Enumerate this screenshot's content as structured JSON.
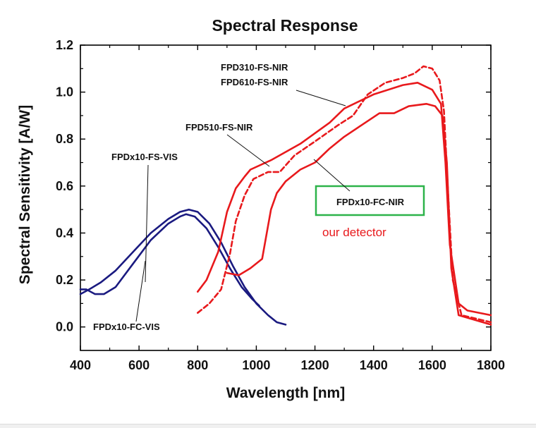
{
  "chart_data": {
    "type": "line",
    "title": "Spectral Response",
    "xlabel": "Wavelength [nm]",
    "ylabel": "Spectral Sensitivity [A/W]",
    "xlim": [
      400,
      1800
    ],
    "ylim": [
      -0.1,
      1.2
    ],
    "x_ticks": [
      400,
      600,
      800,
      1000,
      1200,
      1400,
      1600,
      1800
    ],
    "y_ticks": [
      0.0,
      0.2,
      0.4,
      0.6,
      0.8,
      1.0,
      1.2
    ],
    "x_tick_labels": [
      "400",
      "600",
      "800",
      "1000",
      "1200",
      "1400",
      "1600",
      "1800"
    ],
    "y_tick_labels": [
      "0.0",
      "0.2",
      "0.4",
      "0.6",
      "0.8",
      "1.0",
      "1.2"
    ],
    "grid": false,
    "series": [
      {
        "name": "FPDx10-FS-VIS",
        "color": "#1a1a80",
        "dash": "solid",
        "points": [
          [
            400,
            0.14
          ],
          [
            430,
            0.16
          ],
          [
            470,
            0.19
          ],
          [
            520,
            0.24
          ],
          [
            580,
            0.32
          ],
          [
            640,
            0.4
          ],
          [
            700,
            0.46
          ],
          [
            740,
            0.49
          ],
          [
            770,
            0.5
          ],
          [
            800,
            0.49
          ],
          [
            840,
            0.44
          ],
          [
            880,
            0.36
          ],
          [
            920,
            0.26
          ],
          [
            960,
            0.17
          ],
          [
            1000,
            0.1
          ],
          [
            1040,
            0.05
          ],
          [
            1070,
            0.02
          ],
          [
            1100,
            0.01
          ]
        ]
      },
      {
        "name": "FPDx10-FC-VIS",
        "color": "#1a1a80",
        "dash": "solid",
        "points": [
          [
            400,
            0.16
          ],
          [
            420,
            0.16
          ],
          [
            450,
            0.14
          ],
          [
            480,
            0.14
          ],
          [
            520,
            0.17
          ],
          [
            580,
            0.27
          ],
          [
            640,
            0.37
          ],
          [
            700,
            0.44
          ],
          [
            740,
            0.47
          ],
          [
            760,
            0.48
          ],
          [
            790,
            0.47
          ],
          [
            830,
            0.42
          ],
          [
            870,
            0.34
          ],
          [
            910,
            0.25
          ],
          [
            950,
            0.17
          ],
          [
            985,
            0.12
          ],
          [
            1010,
            0.09
          ]
        ]
      },
      {
        "name": "FPD310-FS-NIR / FPD610-FS-NIR",
        "color": "#e8191c",
        "dash": "solid",
        "points": [
          [
            800,
            0.15
          ],
          [
            830,
            0.2
          ],
          [
            870,
            0.32
          ],
          [
            900,
            0.49
          ],
          [
            930,
            0.59
          ],
          [
            960,
            0.64
          ],
          [
            980,
            0.67
          ],
          [
            1050,
            0.71
          ],
          [
            1150,
            0.78
          ],
          [
            1250,
            0.87
          ],
          [
            1300,
            0.93
          ],
          [
            1400,
            0.99
          ],
          [
            1500,
            1.03
          ],
          [
            1550,
            1.04
          ],
          [
            1600,
            1.01
          ],
          [
            1630,
            0.95
          ],
          [
            1645,
            0.7
          ],
          [
            1660,
            0.35
          ],
          [
            1690,
            0.1
          ],
          [
            1720,
            0.07
          ],
          [
            1800,
            0.05
          ]
        ]
      },
      {
        "name": "FPD510-FS-NIR",
        "color": "#e8191c",
        "dash": "dashed",
        "points": [
          [
            800,
            0.06
          ],
          [
            840,
            0.1
          ],
          [
            880,
            0.16
          ],
          [
            910,
            0.31
          ],
          [
            930,
            0.45
          ],
          [
            960,
            0.56
          ],
          [
            990,
            0.63
          ],
          [
            1040,
            0.66
          ],
          [
            1080,
            0.66
          ],
          [
            1130,
            0.73
          ],
          [
            1200,
            0.79
          ],
          [
            1280,
            0.86
          ],
          [
            1330,
            0.9
          ],
          [
            1380,
            0.99
          ],
          [
            1440,
            1.04
          ],
          [
            1500,
            1.06
          ],
          [
            1540,
            1.08
          ],
          [
            1570,
            1.11
          ],
          [
            1600,
            1.1
          ],
          [
            1625,
            1.05
          ],
          [
            1640,
            0.92
          ],
          [
            1655,
            0.55
          ],
          [
            1670,
            0.2
          ],
          [
            1700,
            0.05
          ],
          [
            1800,
            0.02
          ]
        ]
      },
      {
        "name": "FPDx10-FC-NIR",
        "color": "#e8191c",
        "dash": "solid",
        "points": [
          [
            900,
            0.23
          ],
          [
            940,
            0.22
          ],
          [
            980,
            0.25
          ],
          [
            1020,
            0.29
          ],
          [
            1050,
            0.5
          ],
          [
            1070,
            0.57
          ],
          [
            1100,
            0.62
          ],
          [
            1150,
            0.67
          ],
          [
            1200,
            0.7
          ],
          [
            1250,
            0.76
          ],
          [
            1300,
            0.81
          ],
          [
            1360,
            0.86
          ],
          [
            1420,
            0.91
          ],
          [
            1470,
            0.91
          ],
          [
            1520,
            0.94
          ],
          [
            1580,
            0.95
          ],
          [
            1610,
            0.94
          ],
          [
            1635,
            0.9
          ],
          [
            1650,
            0.7
          ],
          [
            1665,
            0.25
          ],
          [
            1690,
            0.05
          ],
          [
            1800,
            0.01
          ]
        ]
      }
    ],
    "annotations": [
      {
        "id": "fpd310",
        "text": "FPD310-FS-NIR"
      },
      {
        "id": "fpd610",
        "text": "FPD610-FS-NIR"
      },
      {
        "id": "fpd510",
        "text": "FPD510-FS-NIR"
      },
      {
        "id": "fsvis",
        "text": "FPDx10-FS-VIS"
      },
      {
        "id": "fcvis",
        "text": "FPDx10-FC-VIS"
      },
      {
        "id": "fcnir",
        "text": "FPDx10-FC-NIR",
        "highlight_color": "#2db34a"
      },
      {
        "id": "ourdet",
        "text": "our detector",
        "color": "#e8191c"
      }
    ]
  }
}
